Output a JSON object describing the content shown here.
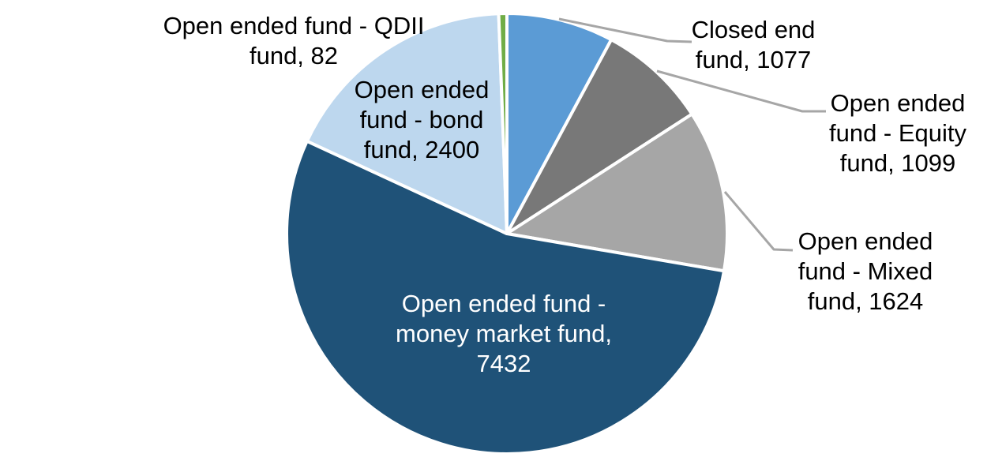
{
  "chart_data": {
    "type": "pie",
    "title": "",
    "legend": "none",
    "grid": "off",
    "label_format": "name, value",
    "leader_line_color": "#A6A6A6",
    "background_color": "#FFFFFF",
    "direction": "clockwise",
    "start_angle_deg": 0,
    "slices": [
      {
        "name": "Closed end fund",
        "value": 1077,
        "color": "#5B9BD5",
        "label_lines": [
          "Closed end",
          "fund, 1077"
        ]
      },
      {
        "name": "Open ended fund - Equity fund",
        "value": 1099,
        "color": "#787878",
        "label_lines": [
          "Open ended",
          "fund - Equity",
          "fund, 1099"
        ]
      },
      {
        "name": "Open ended fund - Mixed fund",
        "value": 1624,
        "color": "#A6A6A6",
        "label_lines": [
          "Open ended",
          "fund - Mixed",
          "fund, 1624"
        ]
      },
      {
        "name": "Open ended fund - money market fund",
        "value": 7432,
        "color": "#1F5278",
        "label_color": "#FFFFFF",
        "label_lines": [
          "Open ended fund -",
          "money market fund,",
          "7432"
        ]
      },
      {
        "name": "Open ended fund - bond fund",
        "value": 2400,
        "color": "#BDD7EE",
        "label_lines": [
          "Open ended",
          "fund - bond",
          "fund, 2400"
        ]
      },
      {
        "name": "Open ended fund - QDII fund",
        "value": 82,
        "color": "#70AD47",
        "label_lines": [
          "Open ended fund - QDII",
          "fund, 82"
        ]
      }
    ]
  }
}
